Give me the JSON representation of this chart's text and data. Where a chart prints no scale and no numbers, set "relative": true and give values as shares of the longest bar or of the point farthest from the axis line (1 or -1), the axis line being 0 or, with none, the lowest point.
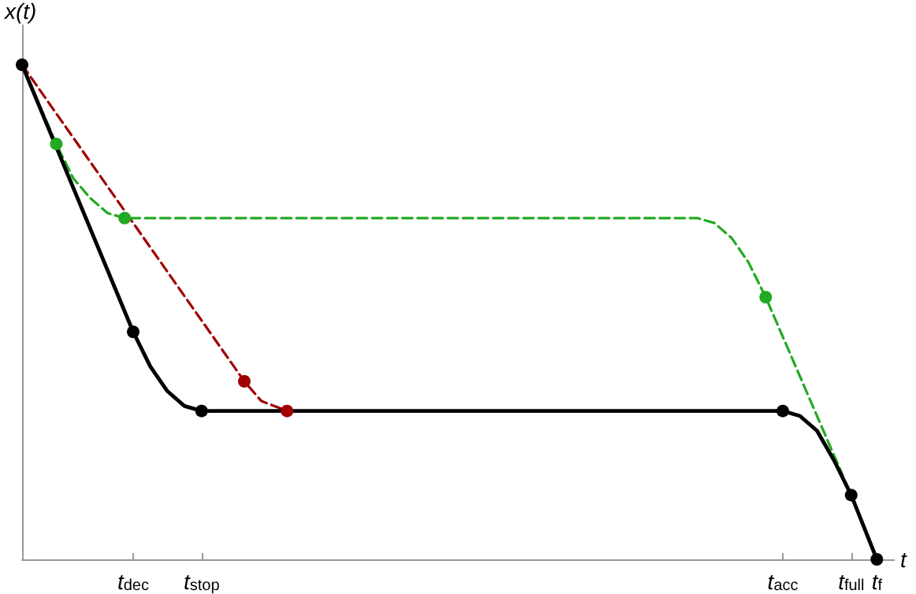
{
  "chart_data": {
    "type": "line",
    "relative": true,
    "xlabel": "t",
    "ylabel": "x(t)",
    "grid": false,
    "categories": [
      null,
      null,
      null,
      null,
      null,
      null,
      null,
      null,
      null,
      null,
      null,
      null,
      null,
      "t$_{dec}$",
      null,
      null,
      null,
      null,
      null,
      null,
      null,
      "t$_{stop}$",
      null,
      null,
      null,
      null,
      null,
      null,
      null,
      null,
      null,
      null,
      null,
      null,
      null,
      null,
      null,
      null,
      null,
      null,
      null,
      null,
      null,
      null,
      null,
      null,
      null,
      null,
      null,
      null,
      null,
      null,
      null,
      null,
      null,
      null,
      null,
      null,
      null,
      null,
      null,
      null,
      null,
      null,
      null,
      null,
      null,
      null,
      null,
      null,
      null,
      null,
      null,
      null,
      null,
      null,
      null,
      null,
      null,
      null,
      null,
      null,
      null,
      null,
      null,
      null,
      null,
      null,
      null,
      "t$_{acc}$",
      null,
      null,
      null,
      null,
      null,
      null,
      null,
      "t$_{full}$",
      null,
      null,
      "t$_{f}$",
      null,
      null
    ],
    "series": [
      {
        "color": "#a00000",
        "line_style": "dashed",
        "marker": "none",
        "values": [
          1,
          null,
          null,
          null,
          null,
          null,
          null,
          null,
          null,
          null,
          null,
          null,
          null,
          null,
          null,
          null,
          null,
          null,
          null,
          null,
          null,
          null,
          null,
          null,
          null,
          null,
          0.36,
          null,
          0.32,
          null,
          null,
          0.3,
          null,
          null,
          null,
          null,
          null,
          null,
          null,
          null,
          null,
          null,
          null,
          null,
          null,
          null,
          null,
          null,
          null,
          null,
          null,
          null,
          null,
          null,
          null,
          null,
          null,
          null,
          null,
          null,
          null,
          null,
          null,
          null,
          null,
          null,
          null,
          null,
          null,
          null,
          null,
          null,
          null,
          null,
          null,
          null,
          null,
          null,
          null,
          null,
          null,
          null,
          null,
          null,
          null,
          null,
          null,
          null,
          null,
          null,
          null,
          null,
          null,
          null,
          null,
          null,
          null,
          null,
          null,
          null,
          null,
          null,
          null
        ]
      },
      {
        "color": "#22aa22",
        "line_style": "dashed",
        "marker": "none",
        "values": [
          1,
          null,
          null,
          null,
          0.84,
          null,
          0.77,
          null,
          0.73,
          null,
          0.7,
          null,
          0.69,
          null,
          null,
          null,
          null,
          null,
          null,
          null,
          null,
          null,
          null,
          null,
          null,
          null,
          null,
          null,
          null,
          null,
          null,
          null,
          null,
          null,
          null,
          null,
          null,
          null,
          null,
          null,
          null,
          null,
          null,
          null,
          null,
          null,
          null,
          null,
          null,
          null,
          null,
          null,
          null,
          null,
          null,
          null,
          null,
          null,
          null,
          null,
          null,
          null,
          null,
          null,
          null,
          null,
          null,
          null,
          null,
          null,
          null,
          null,
          null,
          null,
          null,
          null,
          null,
          null,
          null,
          0.69,
          null,
          0.68,
          null,
          0.65,
          null,
          0.6,
          null,
          0.53,
          null,
          0.45,
          null,
          0.37,
          null,
          0.29,
          null,
          0.21,
          0.17,
          null,
          null,
          null,
          null,
          null,
          null
        ]
      },
      {
        "color": "#000000",
        "line_style": "solid",
        "marker": "none",
        "values": [
          1,
          null,
          null,
          null,
          null,
          null,
          null,
          null,
          null,
          null,
          null,
          null,
          null,
          0.46,
          null,
          0.39,
          null,
          0.34,
          null,
          0.31,
          null,
          0.3,
          null,
          null,
          null,
          null,
          null,
          null,
          null,
          null,
          null,
          null,
          null,
          null,
          null,
          null,
          null,
          null,
          null,
          null,
          null,
          null,
          null,
          null,
          null,
          null,
          null,
          null,
          null,
          null,
          null,
          null,
          null,
          null,
          null,
          null,
          null,
          null,
          null,
          null,
          null,
          null,
          null,
          null,
          null,
          null,
          null,
          null,
          null,
          null,
          null,
          null,
          null,
          null,
          null,
          null,
          null,
          null,
          null,
          null,
          null,
          null,
          null,
          null,
          null,
          null,
          null,
          null,
          null,
          0.3,
          null,
          0.29,
          null,
          0.26,
          null,
          0.2,
          null,
          0.13,
          null,
          null,
          0,
          null,
          null
        ]
      },
      {
        "type": "scatter",
        "color": "#a00000",
        "marker": "circle",
        "values": [
          null,
          null,
          null,
          null,
          null,
          null,
          null,
          null,
          null,
          null,
          null,
          null,
          null,
          null,
          null,
          null,
          null,
          null,
          null,
          null,
          null,
          null,
          null,
          null,
          null,
          null,
          0.36,
          null,
          null,
          null,
          null,
          0.3,
          null,
          null,
          null,
          null,
          null,
          null,
          null,
          null,
          null,
          null,
          null,
          null,
          null,
          null,
          null,
          null,
          null,
          null,
          null,
          null,
          null,
          null,
          null,
          null,
          null,
          null,
          null,
          null,
          null,
          null,
          null,
          null,
          null,
          null,
          null,
          null,
          null,
          null,
          null,
          null,
          null,
          null,
          null,
          null,
          null,
          null,
          null,
          null,
          null,
          null,
          null,
          null,
          null,
          null,
          null,
          null,
          null,
          null,
          null,
          null,
          null,
          null,
          null,
          null,
          null,
          null,
          null,
          null,
          null,
          null,
          null
        ]
      },
      {
        "type": "scatter",
        "color": "#22aa22",
        "marker": "circle",
        "values": [
          null,
          null,
          null,
          null,
          0.84,
          null,
          null,
          null,
          null,
          null,
          null,
          null,
          0.69,
          null,
          null,
          null,
          null,
          null,
          null,
          null,
          null,
          null,
          null,
          null,
          null,
          null,
          null,
          null,
          null,
          null,
          null,
          null,
          null,
          null,
          null,
          null,
          null,
          null,
          null,
          null,
          null,
          null,
          null,
          null,
          null,
          null,
          null,
          null,
          null,
          null,
          null,
          null,
          null,
          null,
          null,
          null,
          null,
          null,
          null,
          null,
          null,
          null,
          null,
          null,
          null,
          null,
          null,
          null,
          null,
          null,
          null,
          null,
          null,
          null,
          null,
          null,
          null,
          null,
          null,
          null,
          null,
          null,
          null,
          null,
          null,
          null,
          null,
          0.53,
          null,
          null,
          null,
          null,
          null,
          null,
          null,
          null,
          null,
          null,
          null,
          null,
          null,
          null,
          null
        ]
      },
      {
        "type": "scatter",
        "color": "#000000",
        "marker": "circle",
        "values": [
          1,
          null,
          null,
          null,
          null,
          null,
          null,
          null,
          null,
          null,
          null,
          null,
          null,
          0.46,
          null,
          null,
          null,
          null,
          null,
          null,
          null,
          0.3,
          null,
          null,
          null,
          null,
          null,
          null,
          null,
          null,
          null,
          null,
          null,
          null,
          null,
          null,
          null,
          null,
          null,
          null,
          null,
          null,
          null,
          null,
          null,
          null,
          null,
          null,
          null,
          null,
          null,
          null,
          null,
          null,
          null,
          null,
          null,
          null,
          null,
          null,
          null,
          null,
          null,
          null,
          null,
          null,
          null,
          null,
          null,
          null,
          null,
          null,
          null,
          null,
          null,
          null,
          null,
          null,
          null,
          null,
          null,
          null,
          null,
          null,
          null,
          null,
          null,
          null,
          null,
          0.3,
          null,
          null,
          null,
          null,
          null,
          null,
          null,
          0.13,
          null,
          null,
          0,
          null,
          null
        ]
      }
    ]
  }
}
